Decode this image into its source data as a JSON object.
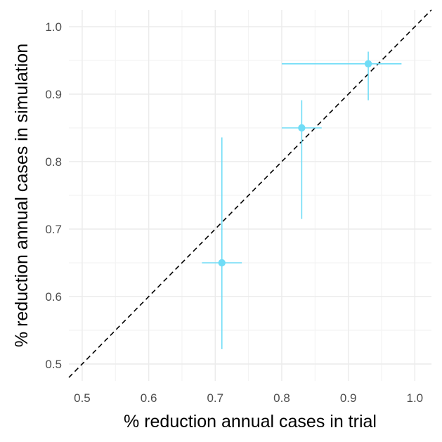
{
  "chart_data": {
    "type": "scatter",
    "title": "",
    "xlabel": "% reduction annual cases in trial",
    "ylabel": "% reduction annual cases in simulation",
    "xlim": [
      0.48,
      1.025
    ],
    "ylim": [
      0.475,
      1.025
    ],
    "x_ticks": [
      0.5,
      0.6,
      0.7,
      0.8,
      0.9,
      1.0
    ],
    "x_tick_labels": [
      "0.5",
      "0.6",
      "0.7",
      "0.8",
      "0.9",
      "1.0"
    ],
    "y_ticks": [
      0.5,
      0.6,
      0.7,
      0.8,
      0.9,
      1.0
    ],
    "y_tick_labels": [
      "0.5",
      "0.6",
      "0.7",
      "0.8",
      "0.9",
      "1.0"
    ],
    "grid": true,
    "reference_line": {
      "type": "identity",
      "style": "dashed",
      "color": "#000000"
    },
    "point_color": "#6fdcf6",
    "points": [
      {
        "x": 0.71,
        "y": 0.65,
        "x_low": 0.68,
        "x_high": 0.74,
        "y_low": 0.522,
        "y_high": 0.836
      },
      {
        "x": 0.83,
        "y": 0.85,
        "x_low": 0.8,
        "x_high": 0.86,
        "y_low": 0.715,
        "y_high": 0.891
      },
      {
        "x": 0.93,
        "y": 0.945,
        "x_low": 0.8,
        "x_high": 0.98,
        "y_low": 0.891,
        "y_high": 0.963
      }
    ]
  }
}
